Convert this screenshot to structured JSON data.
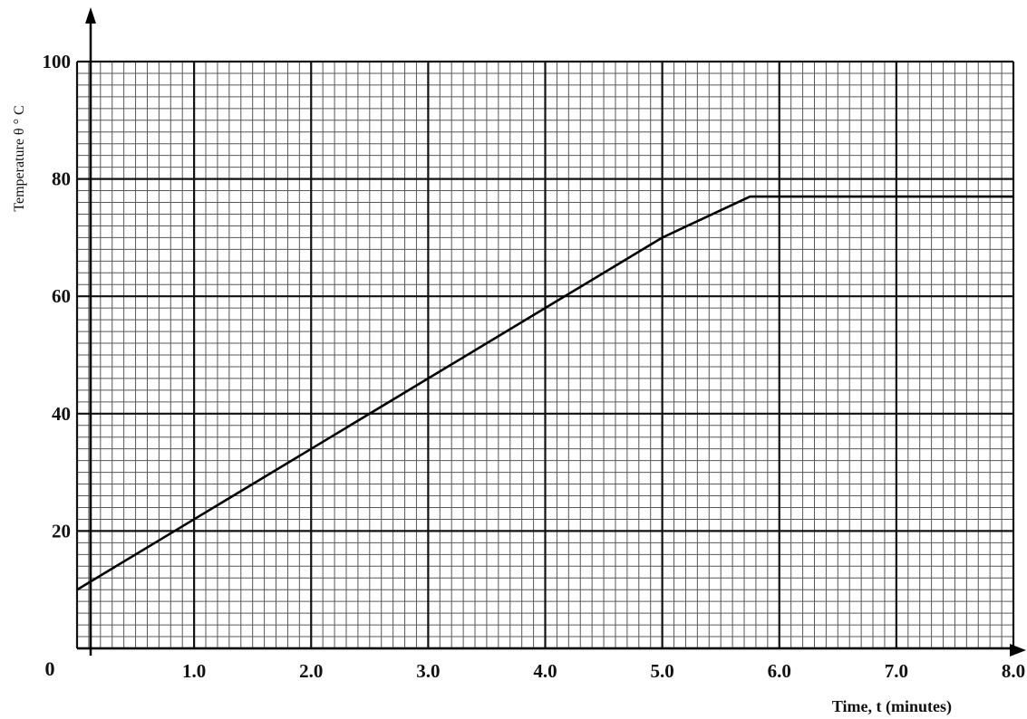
{
  "chart_data": {
    "type": "line",
    "title": "",
    "xlabel": "Time, t (minutes)",
    "ylabel": "Temperature θ ° C",
    "origin_label": "0",
    "xlim": [
      0,
      8.0
    ],
    "ylim": [
      0,
      100
    ],
    "x_ticks": [
      1.0,
      2.0,
      3.0,
      4.0,
      5.0,
      6.0,
      7.0,
      8.0
    ],
    "x_tick_labels": [
      "1.0",
      "2.0",
      "3.0",
      "4.0",
      "5.0",
      "6.0",
      "7.0",
      "8.0"
    ],
    "y_ticks": [
      20,
      40,
      60,
      80,
      100
    ],
    "y_tick_labels": [
      "20",
      "40",
      "60",
      "80",
      "100"
    ],
    "grid": "graph paper (major every 1.0 min / 20 °C, minor every 0.1 min / 2 °C)",
    "series": [
      {
        "x": [
          0,
          1.0,
          2.0,
          3.0,
          4.0,
          5.0,
          5.75,
          6.0,
          7.0,
          8.0
        ],
        "y": [
          10,
          22,
          34,
          46,
          58,
          70,
          77,
          77,
          77,
          77
        ]
      }
    ]
  }
}
